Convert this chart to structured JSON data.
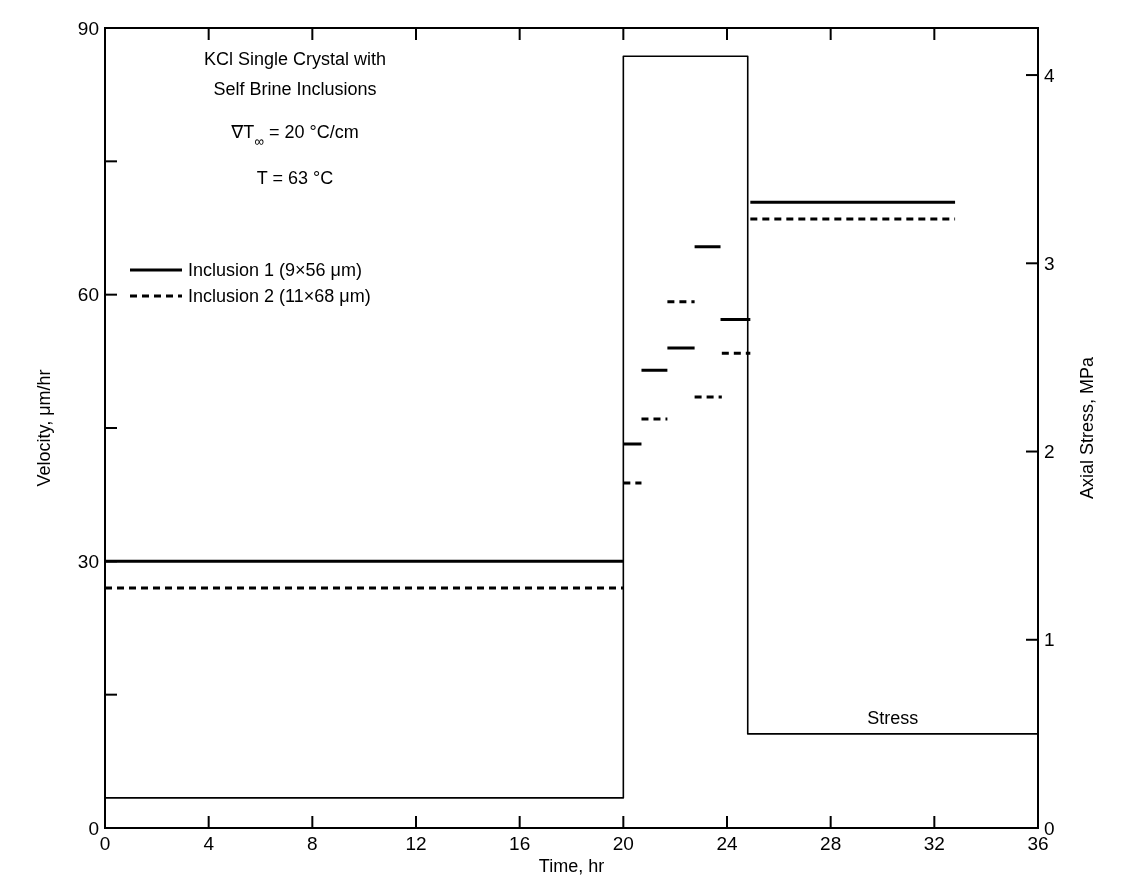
{
  "chart_data": {
    "type": "line",
    "xlabel": "Time, hr",
    "ylabel": "Velocity, μm/hr",
    "y2label": "Axial Stress, MPa",
    "annotations": [
      "KCl Single Crystal with",
      "Self Brine Inclusions",
      "∇T$_{∞}$ = 20 °C/cm",
      "T = 63 °C"
    ],
    "xlim": [
      0,
      36
    ],
    "xticks": [
      0,
      4,
      8,
      12,
      16,
      20,
      24,
      28,
      32,
      36
    ],
    "ylim": [
      0,
      90
    ],
    "yticks": [
      0,
      {
        "value": 15,
        "label": null
      },
      30,
      {
        "value": 45,
        "label": null
      },
      60,
      {
        "value": 75,
        "label": null
      },
      90
    ],
    "y2lim": [
      0,
      4.25
    ],
    "y2ticks": [
      0,
      1,
      2,
      3,
      4
    ],
    "legend": "top left",
    "series": [
      {
        "name": "Inclusion 1 (9×56 μm)",
        "color": "#000000",
        "line_style": "solid",
        "x": [
          0,
          20,
          null,
          20,
          20.7,
          null,
          20.7,
          21.7,
          null,
          21.7,
          22.75,
          null,
          22.75,
          23.75,
          null,
          23.75,
          24.9,
          null,
          24.9,
          32.8
        ],
        "values": [
          30,
          30,
          null,
          43.2,
          43.2,
          null,
          51.5,
          51.5,
          null,
          54,
          54,
          null,
          65.4,
          65.4,
          null,
          57.2,
          57.2,
          null,
          70.4,
          70.4
        ]
      },
      {
        "name": "Inclusion 2 (11×68 μm)",
        "color": "#000000",
        "line_style": "dashed",
        "x": [
          0,
          20,
          null,
          20,
          20.7,
          null,
          20.7,
          21.7,
          null,
          21.7,
          22.75,
          null,
          22.75,
          23.8,
          null,
          23.8,
          24.9,
          null,
          24.9,
          32.8
        ],
        "values": [
          27,
          27,
          null,
          38.8,
          38.8,
          null,
          46,
          46,
          null,
          59.2,
          59.2,
          null,
          48.5,
          48.5,
          null,
          53.4,
          53.4,
          null,
          68.5,
          68.5
        ]
      },
      {
        "name": "Stress",
        "type": "step",
        "axis": "y2",
        "color": "#000000",
        "line_style": "solid",
        "x": [
          0,
          20,
          24.8,
          36
        ],
        "values": [
          0.16,
          4.1,
          0.5,
          0.5
        ]
      }
    ]
  }
}
